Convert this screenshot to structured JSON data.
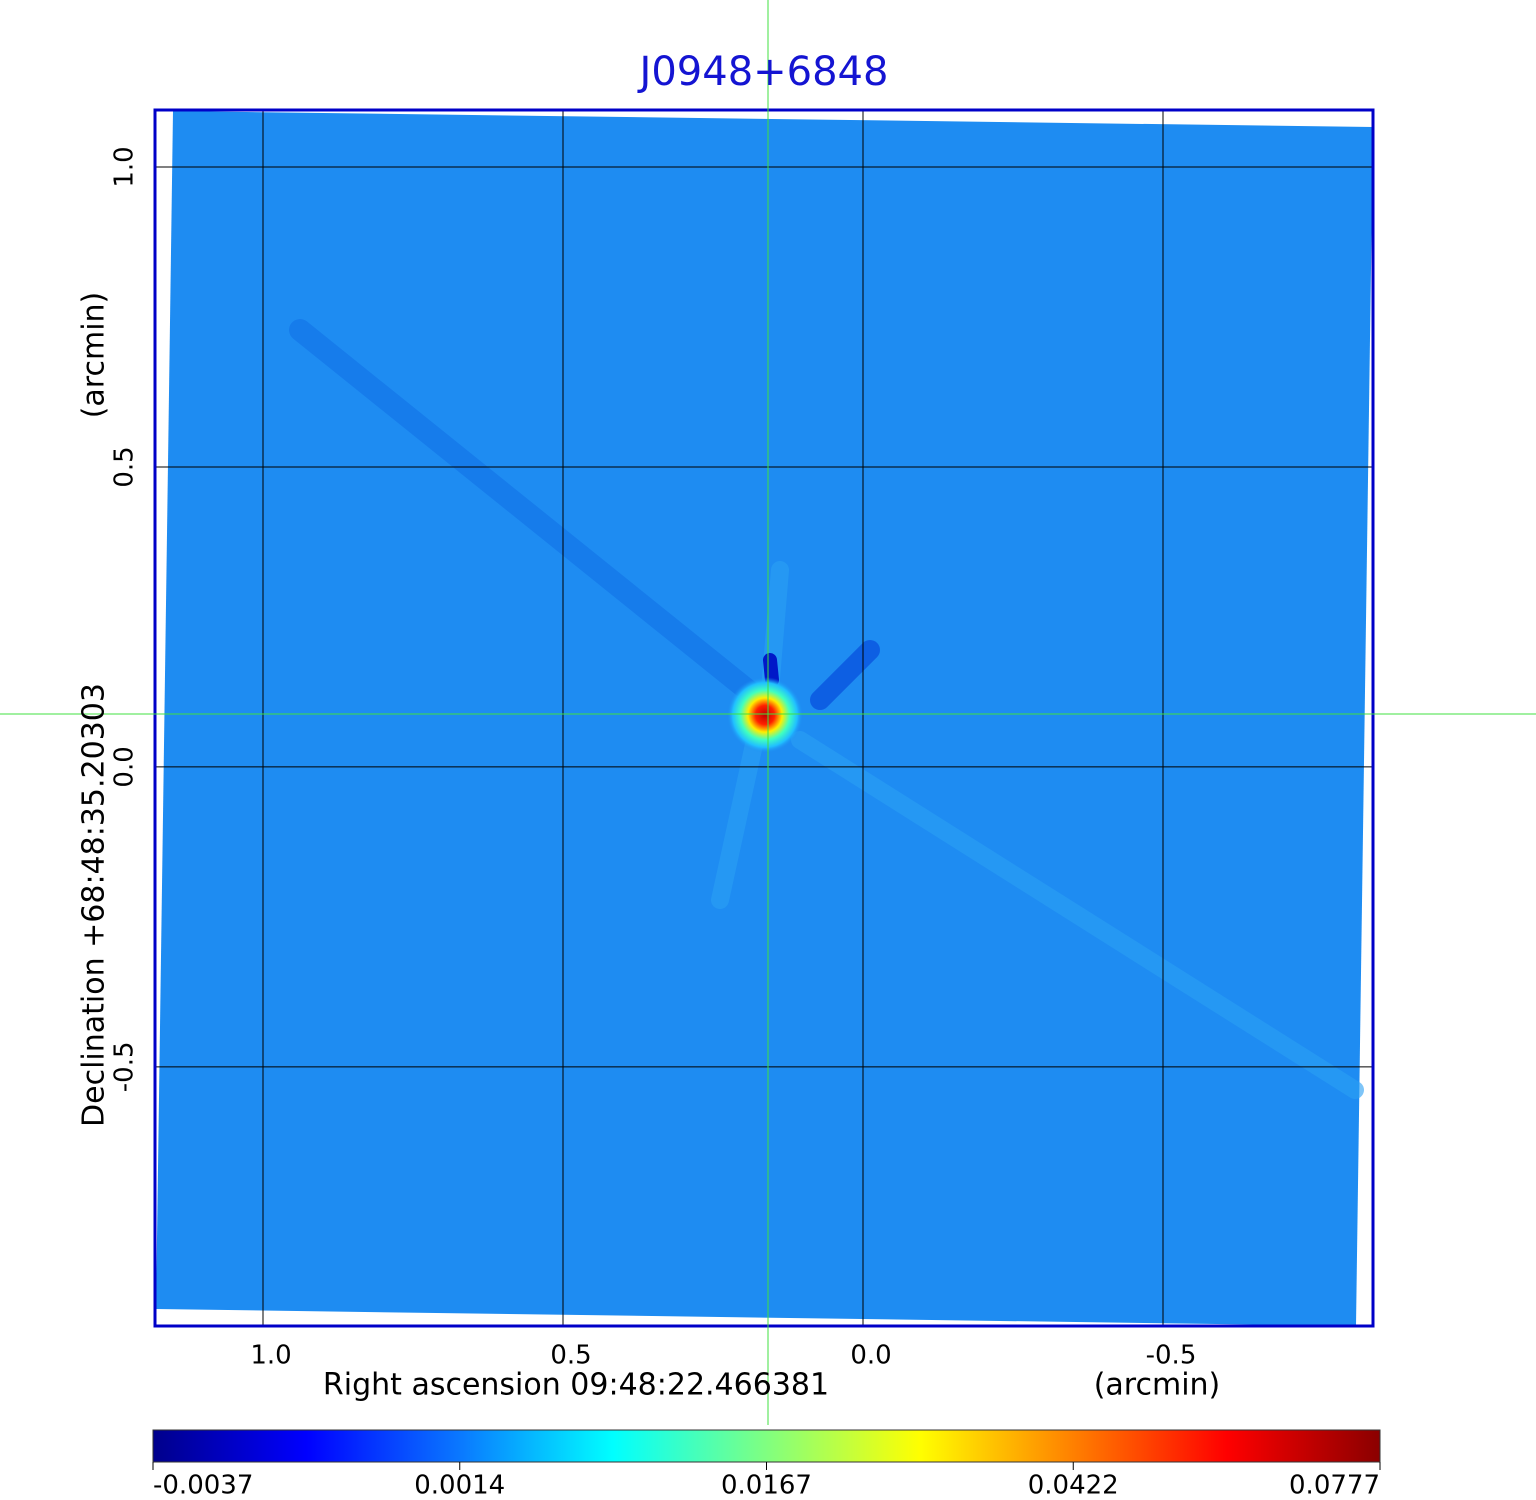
{
  "chart_data": {
    "type": "image",
    "title": "J0948+6848",
    "x_label": "Right ascension  09:48:22.466381",
    "x_unit": "(arcmin)",
    "y_label": "Declination  +68:48:35.20303",
    "y_unit": "(arcmin)",
    "xlim": [
      1.18,
      -0.85
    ],
    "ylim": [
      -0.932,
      1.095
    ],
    "xticks": [
      {
        "value": 1,
        "label": "1.0"
      },
      0.5,
      {
        "value": 0,
        "label": "0.0"
      },
      -0.5
    ],
    "yticks": [
      {
        "value": 1,
        "label": "1.0"
      },
      0.5,
      {
        "value": 0,
        "label": "0.0"
      },
      -0.5
    ],
    "grid": true,
    "colorbar": {
      "ticks": [
        -0.0037,
        0.0014,
        0.0167,
        0.0422,
        0.0777
      ],
      "colors": [
        "#00008b",
        "#0000ff",
        "#0a78ff",
        "#00ffff",
        "#80ff80",
        "#ffff00",
        "#ff8000",
        "#ff0000",
        "#8b0000"
      ]
    }
  }
}
